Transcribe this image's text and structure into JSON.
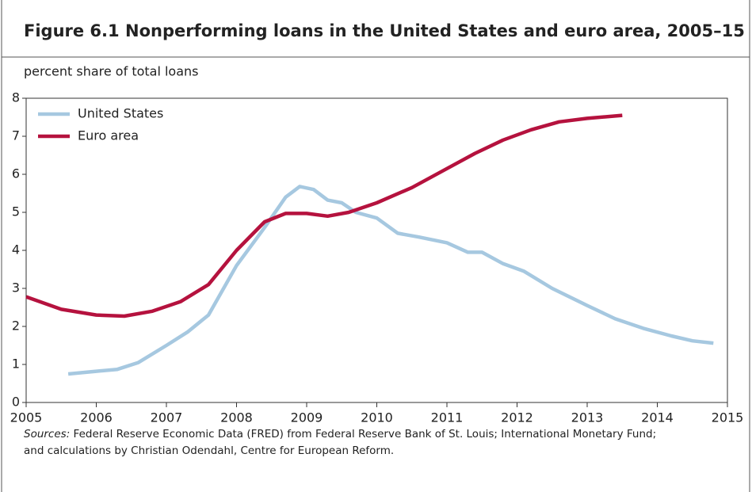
{
  "chart_data": {
    "type": "line",
    "figure_label": "Figure 6.1",
    "title": "Nonperforming loans in the United States and euro area, 2005–15",
    "y_label": "percent share of total loans",
    "xlim": [
      2005,
      2015
    ],
    "xticks": [
      2005,
      2006,
      2007,
      2008,
      2009,
      2010,
      2011,
      2012,
      2013,
      2014,
      2015
    ],
    "ylim": [
      0,
      8
    ],
    "yticks": [
      0,
      1,
      2,
      3,
      4,
      5,
      6,
      7,
      8
    ],
    "legend": "upper left",
    "series": [
      {
        "name": "United States",
        "color": "#a6c8e0",
        "x": [
          2005.6,
          2006.0,
          2006.3,
          2006.6,
          2007.0,
          2007.3,
          2007.6,
          2008.0,
          2008.4,
          2008.7,
          2008.9,
          2009.1,
          2009.3,
          2009.5,
          2009.7,
          2010.0,
          2010.3,
          2010.6,
          2011.0,
          2011.3,
          2011.5,
          2011.8,
          2012.1,
          2012.5,
          2013.0,
          2013.4,
          2013.8,
          2014.2,
          2014.5,
          2014.8
        ],
        "values": [
          0.75,
          0.82,
          0.87,
          1.05,
          1.5,
          1.85,
          2.3,
          3.6,
          4.6,
          5.4,
          5.68,
          5.6,
          5.32,
          5.25,
          5.0,
          4.85,
          4.45,
          4.35,
          4.2,
          3.95,
          3.95,
          3.65,
          3.45,
          3.0,
          2.55,
          2.2,
          1.95,
          1.75,
          1.62,
          1.56
        ]
      },
      {
        "name": "Euro area",
        "color": "#b5123e",
        "x": [
          2005.0,
          2005.5,
          2006.0,
          2006.4,
          2006.8,
          2007.2,
          2007.6,
          2008.0,
          2008.4,
          2008.7,
          2009.0,
          2009.3,
          2009.6,
          2010.0,
          2010.5,
          2011.0,
          2011.4,
          2011.8,
          2012.2,
          2012.6,
          2013.0,
          2013.5
        ],
        "values": [
          2.78,
          2.45,
          2.3,
          2.27,
          2.4,
          2.65,
          3.1,
          4.0,
          4.75,
          4.97,
          4.97,
          4.9,
          5.0,
          5.25,
          5.65,
          6.15,
          6.55,
          6.9,
          7.17,
          7.38,
          7.47,
          7.55
        ]
      }
    ],
    "source_label": "Sources:",
    "source_lines": [
      "Federal Reserve Economic Data (FRED) from Federal Reserve Bank of St. Louis; International Monetary Fund;",
      "and calculations by Christian Odendahl, Centre for European Reform."
    ]
  }
}
